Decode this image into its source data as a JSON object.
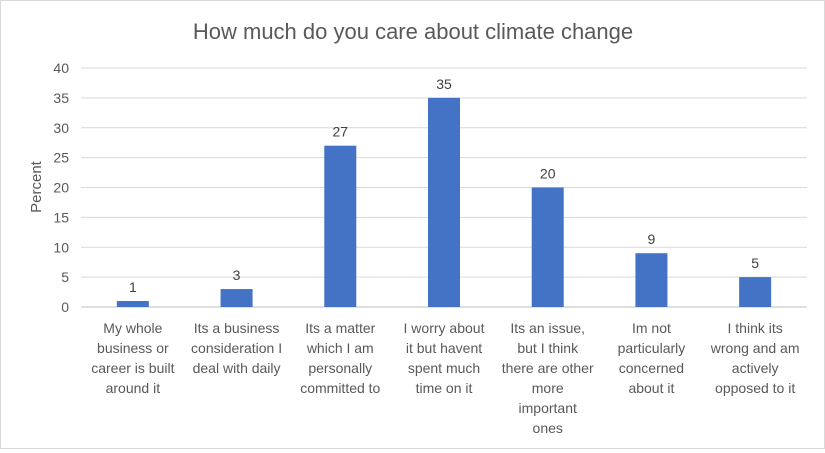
{
  "chart_data": {
    "type": "bar",
    "title": "How much do you care about climate change",
    "xlabel": "",
    "ylabel": "Percent",
    "ylim": [
      0,
      40
    ],
    "yticks": [
      "0",
      "5",
      "10",
      "15",
      "20",
      "25",
      "30",
      "35",
      "40"
    ],
    "grid": true,
    "legend": "none",
    "bar_color": "#4472C4",
    "categories": [
      [
        "My whole",
        "business or",
        "career is built",
        "around it"
      ],
      [
        "Its a business",
        "consideration I",
        "deal with daily"
      ],
      [
        "Its a matter",
        "which I am",
        "personally",
        "committed to"
      ],
      [
        "I worry about",
        "it but havent",
        "spent much",
        "time on it"
      ],
      [
        "Its an issue,",
        "but I think",
        "there are other",
        "more",
        "important",
        "ones"
      ],
      [
        "Im not",
        "particularly",
        "concerned",
        "about it"
      ],
      [
        "I think its",
        "wrong and am",
        "actively",
        "opposed to it"
      ]
    ],
    "values": [
      1,
      3,
      27,
      35,
      20,
      9,
      5
    ],
    "data_labels": [
      "1",
      "3",
      "27",
      "35",
      "20",
      "9",
      "5"
    ]
  }
}
